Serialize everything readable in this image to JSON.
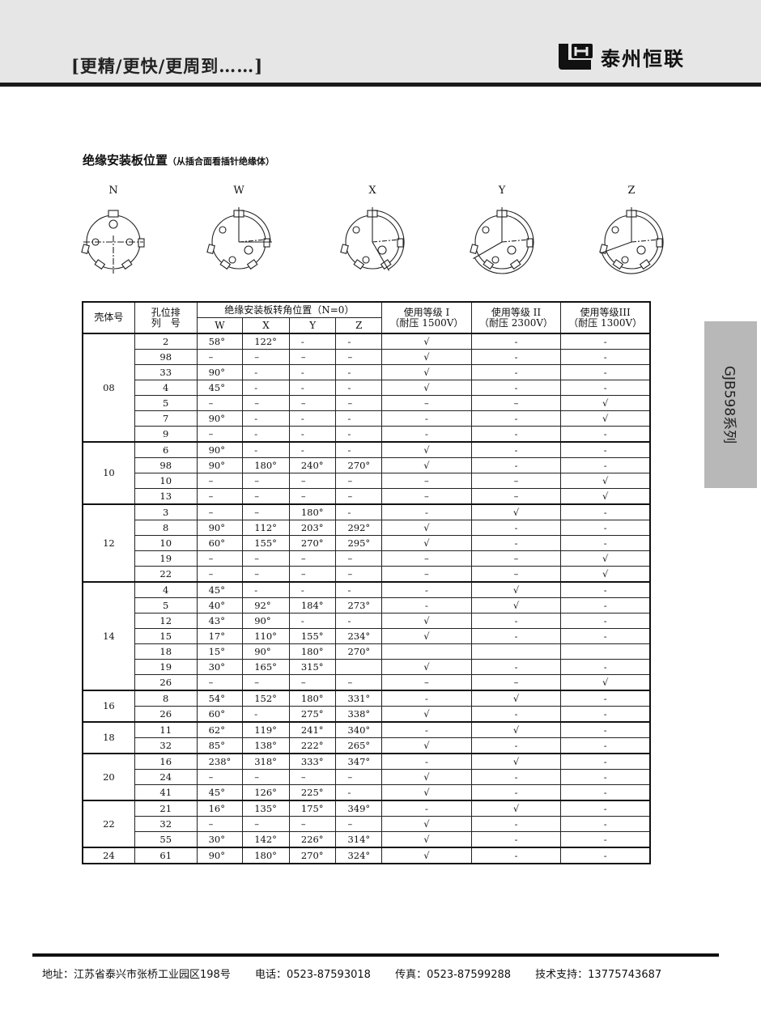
{
  "header": {
    "slogan": "[更精/更快/更周到……]",
    "company": "泰州恒联",
    "logo_mark": "LH"
  },
  "section": {
    "title": "绝缘安装板位置",
    "subtitle": "（从插合面看插针绝缘体）"
  },
  "diagrams": [
    "N",
    "W",
    "X",
    "Y",
    "Z"
  ],
  "table": {
    "headers": {
      "shell": "壳体号",
      "layout_line1": "孔位排",
      "layout_line2": "列　号",
      "rotation": "绝缘安装板转角位置（N=0）",
      "W": "W",
      "X": "X",
      "Y": "Y",
      "Z": "Z",
      "grade1_line1": "使用等级 I",
      "grade1_line2": "（耐压 1500V）",
      "grade2_line1": "使用等级 II",
      "grade2_line2": "（耐压 2300V）",
      "grade3_line1": "使用等级III",
      "grade3_line2": "（耐压 1300V）"
    },
    "groups": [
      {
        "shell": "08",
        "rows": [
          [
            "2",
            "58°",
            "122°",
            "-",
            "-",
            "√",
            "-",
            "-"
          ],
          [
            "98",
            "–",
            "–",
            "–",
            "–",
            "√",
            "-",
            "-"
          ],
          [
            "33",
            "90°",
            "-",
            "-",
            "-",
            "√",
            "-",
            "-"
          ],
          [
            "4",
            "45°",
            "-",
            "-",
            "-",
            "√",
            "-",
            "-"
          ],
          [
            "5",
            "–",
            "–",
            "–",
            "–",
            "–",
            "–",
            "√"
          ],
          [
            "7",
            "90°",
            "-",
            "-",
            "-",
            "-",
            "-",
            "√"
          ],
          [
            "9",
            "–",
            "-",
            "-",
            "-",
            "-",
            "-",
            "-"
          ]
        ]
      },
      {
        "shell": "10",
        "rows": [
          [
            "6",
            "90°",
            "-",
            "-",
            "-",
            "√",
            "-",
            "-"
          ],
          [
            "98",
            "90°",
            "180°",
            "240°",
            "270°",
            "√",
            "-",
            "-"
          ],
          [
            "10",
            "–",
            "–",
            "–",
            "–",
            "–",
            "–",
            "√"
          ],
          [
            "13",
            "–",
            "–",
            "–",
            "–",
            "–",
            "–",
            "√"
          ]
        ]
      },
      {
        "shell": "12",
        "rows": [
          [
            "3",
            "–",
            "–",
            "180°",
            "-",
            "-",
            "√",
            "-"
          ],
          [
            "8",
            "90°",
            "112°",
            "203°",
            "292°",
            "√",
            "-",
            "-"
          ],
          [
            "10",
            "60°",
            "155°",
            "270°",
            "295°",
            "√",
            "-",
            "-"
          ],
          [
            "19",
            "–",
            "–",
            "–",
            "–",
            "–",
            "–",
            "√"
          ],
          [
            "22",
            "–",
            "–",
            "–",
            "–",
            "–",
            "–",
            "√"
          ]
        ]
      },
      {
        "shell": "14",
        "rows": [
          [
            "4",
            "45°",
            "-",
            "-",
            "-",
            "-",
            "√",
            "-"
          ],
          [
            "5",
            "40°",
            "92°",
            "184°",
            "273°",
            "-",
            "√",
            "-"
          ],
          [
            "12",
            "43°",
            "90°",
            "-",
            "-",
            "√",
            "-",
            "-"
          ],
          [
            "15",
            "17°",
            "110°",
            "155°",
            "234°",
            "√",
            "-",
            "-"
          ],
          [
            "18",
            "15°",
            "90°",
            "180°",
            "270°",
            "",
            "",
            ""
          ],
          [
            "19",
            "30°",
            "165°",
            "315°",
            "",
            "√",
            "-",
            "-"
          ],
          [
            "26",
            "–",
            "–",
            "–",
            "–",
            "–",
            "–",
            "√"
          ]
        ]
      },
      {
        "shell": "16",
        "rows": [
          [
            "8",
            "54°",
            "152°",
            "180°",
            "331°",
            "-",
            "√",
            "-"
          ],
          [
            "26",
            "60°",
            "-",
            "275°",
            "338°",
            "√",
            "-",
            "-"
          ]
        ]
      },
      {
        "shell": "18",
        "rows": [
          [
            "11",
            "62°",
            "119°",
            "241°",
            "340°",
            "-",
            "√",
            "-"
          ],
          [
            "32",
            "85°",
            "138°",
            "222°",
            "265°",
            "√",
            "-",
            "-"
          ]
        ]
      },
      {
        "shell": "20",
        "rows": [
          [
            "16",
            "238°",
            "318°",
            "333°",
            "347°",
            "-",
            "√",
            "-"
          ],
          [
            "24",
            "–",
            "–",
            "–",
            "–",
            "√",
            "-",
            "-"
          ],
          [
            "41",
            "45°",
            "126°",
            "225°",
            "-",
            "√",
            "-",
            "-"
          ]
        ]
      },
      {
        "shell": "22",
        "rows": [
          [
            "21",
            "16°",
            "135°",
            "175°",
            "349°",
            "-",
            "√",
            "-"
          ],
          [
            "32",
            "–",
            "–",
            "–",
            "–",
            "√",
            "-",
            "-"
          ],
          [
            "55",
            "30°",
            "142°",
            "226°",
            "314°",
            "√",
            "-",
            "-"
          ]
        ]
      },
      {
        "shell": "24",
        "rows": [
          [
            "61",
            "90°",
            "180°",
            "270°",
            "324°",
            "√",
            "-",
            "-"
          ]
        ]
      }
    ]
  },
  "side_tab": "GJB598系列",
  "footer": {
    "address": "地址：江苏省泰兴市张桥工业园区198号",
    "phone": "电话：0523-87593018",
    "fax": "传真：0523-87599288",
    "support": "技术支持：13775743687"
  }
}
